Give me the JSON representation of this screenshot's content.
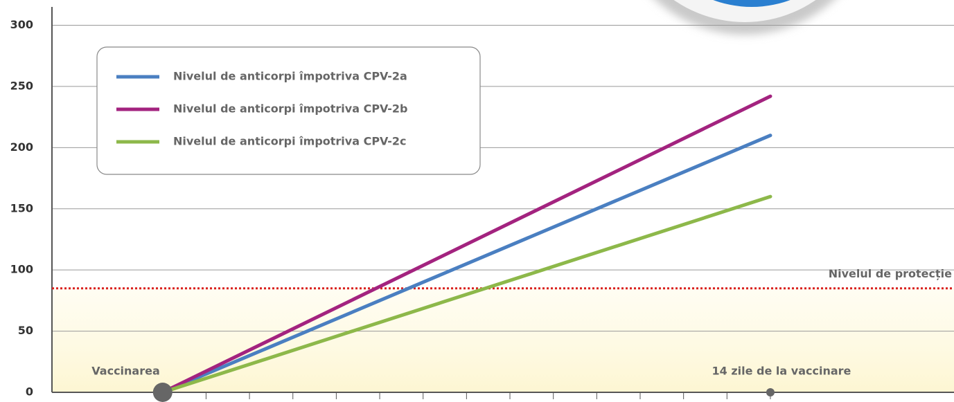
{
  "chart_data": {
    "type": "line",
    "x": [
      0,
      14
    ],
    "series": [
      {
        "name": "Nivelul de anticorpi împotriva CPV-2a",
        "color": "#4a7fc1",
        "values": [
          0,
          210
        ]
      },
      {
        "name": "Nivelul de anticorpi împotriva CPV-2b",
        "color": "#a3237f",
        "values": [
          0,
          242
        ]
      },
      {
        "name": "Nivelul de anticorpi împotriva CPV-2c",
        "color": "#8db84a",
        "values": [
          0,
          160
        ]
      }
    ],
    "annotations": [
      {
        "text": "Vaccinarea",
        "x": 0
      },
      {
        "text": "14 zile de la vaccinare",
        "x": 14
      }
    ],
    "reference_line": {
      "label": "Nivelul de protecție",
      "value": 85,
      "color": "#d9201f"
    },
    "xlim": [
      -2.55,
      18.23
    ],
    "xticks": [
      0,
      1,
      2,
      3,
      4,
      5,
      6,
      7,
      8,
      9,
      10,
      11,
      12,
      13,
      14
    ],
    "ylim": [
      0,
      315
    ],
    "yticks": [
      0,
      50,
      100,
      150,
      200,
      250,
      300
    ],
    "grid": true,
    "legend": "upper left"
  }
}
